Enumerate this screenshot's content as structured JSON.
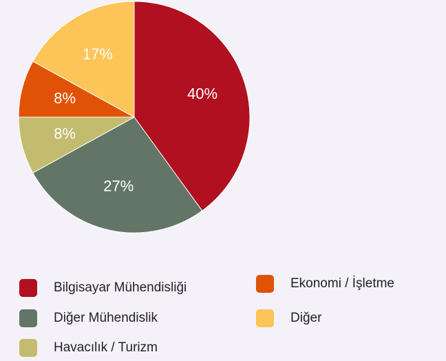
{
  "chart_data": {
    "type": "pie",
    "categories": [
      "Bilgisayar Mühendisliği",
      "Diğer Mühendislik",
      "Havacılık / Turizm",
      "Ekonomi / İşletme",
      "Diğer"
    ],
    "values": [
      40,
      27,
      8,
      8,
      17
    ],
    "value_labels": [
      "40%",
      "27%",
      "8%",
      "8%",
      "17%"
    ],
    "colors": [
      "#b01020",
      "#627566",
      "#c3bc6e",
      "#e05307",
      "#fdc457"
    ]
  }
}
